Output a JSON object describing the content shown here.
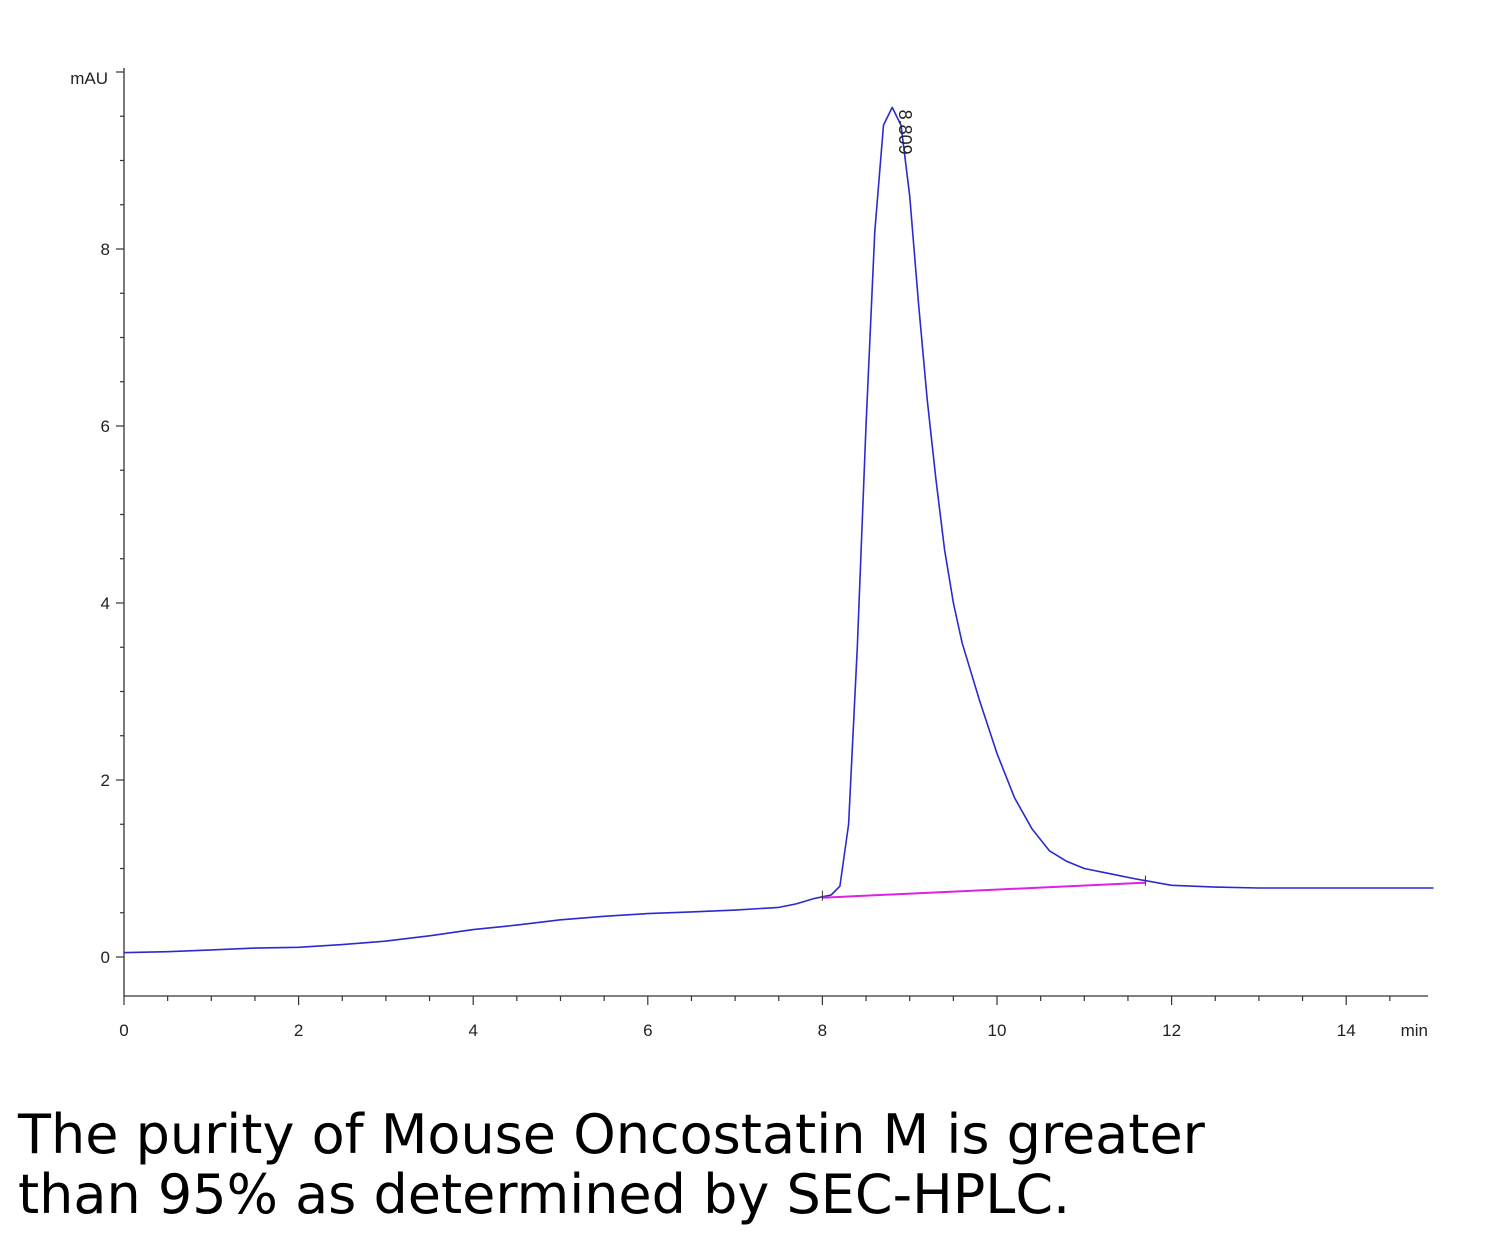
{
  "chart_data": {
    "type": "line",
    "xlabel": "min",
    "ylabel": "mAU",
    "xlim": [
      0,
      15
    ],
    "ylim": [
      -0.45,
      10.2
    ],
    "x_ticks": [
      0,
      2,
      4,
      6,
      8,
      10,
      12,
      14
    ],
    "y_ticks": [
      0,
      2,
      4,
      6,
      8
    ],
    "grid": false,
    "series": [
      {
        "color": "#2a2ad0",
        "x": [
          0,
          0.5,
          1,
          1.5,
          2,
          2.5,
          3,
          3.5,
          4,
          4.5,
          5,
          5.5,
          6,
          6.5,
          7,
          7.5,
          7.7,
          7.9,
          8.0,
          8.1,
          8.2,
          8.3,
          8.4,
          8.5,
          8.6,
          8.7,
          8.8,
          8.9,
          9.0,
          9.1,
          9.2,
          9.3,
          9.4,
          9.5,
          9.6,
          9.8,
          10.0,
          10.2,
          10.4,
          10.6,
          10.8,
          11.0,
          11.3,
          11.6,
          12.0,
          12.5,
          13.0,
          13.5,
          14.0,
          14.5,
          15.0
        ],
        "y": [
          0.05,
          0.06,
          0.08,
          0.1,
          0.11,
          0.14,
          0.18,
          0.24,
          0.31,
          0.36,
          0.42,
          0.46,
          0.49,
          0.51,
          0.53,
          0.56,
          0.6,
          0.66,
          0.68,
          0.7,
          0.8,
          1.5,
          3.5,
          6.0,
          8.2,
          9.4,
          9.6,
          9.4,
          8.6,
          7.4,
          6.3,
          5.4,
          4.6,
          4.0,
          3.55,
          2.9,
          2.3,
          1.8,
          1.45,
          1.2,
          1.08,
          1.0,
          0.94,
          0.88,
          0.81,
          0.79,
          0.78,
          0.78,
          0.78,
          0.78,
          0.78
        ]
      },
      {
        "color": "#e020e0",
        "x": [
          8.0,
          11.7
        ],
        "y": [
          0.67,
          0.84
        ]
      }
    ],
    "annotations": [
      {
        "text": "8.809",
        "x": 8.809,
        "y": 9.62
      }
    ]
  },
  "caption": {
    "line1": "The purity of Mouse Oncostatin M is greater",
    "line2": "than 95% as determined by SEC-HPLC."
  }
}
